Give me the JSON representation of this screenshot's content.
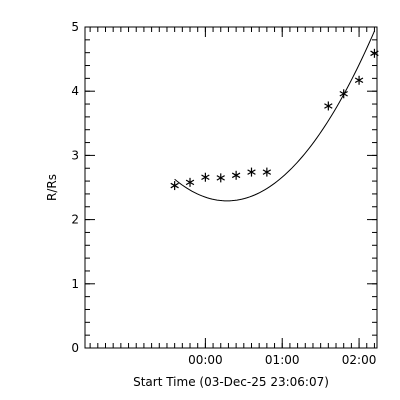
{
  "chart_data": {
    "type": "scatter",
    "xlabel": "Start Time (03-Dec-25 23:06:07)",
    "ylabel": "R/Rs",
    "x_unit": "minutes after start time",
    "xlim": [
      -40,
      188
    ],
    "ylim": [
      0,
      5
    ],
    "x_ticks": [
      {
        "value": 54,
        "label": "00:00"
      },
      {
        "value": 114,
        "label": "01:00"
      },
      {
        "value": 174,
        "label": "02:00"
      }
    ],
    "y_ticks": [
      {
        "value": 0,
        "label": "0"
      },
      {
        "value": 1,
        "label": "1"
      },
      {
        "value": 2,
        "label": "2"
      },
      {
        "value": 3,
        "label": "3"
      },
      {
        "value": 4,
        "label": "4"
      },
      {
        "value": 5,
        "label": "5"
      }
    ],
    "x_minor_step": 6,
    "y_minor_step": 0.2,
    "grid": false,
    "series": [
      {
        "marker": "asterisk",
        "color": "#000000",
        "points": [
          {
            "x": 30,
            "y": 2.53
          },
          {
            "x": 42,
            "y": 2.58
          },
          {
            "x": 54,
            "y": 2.66
          },
          {
            "x": 66,
            "y": 2.65
          },
          {
            "x": 78,
            "y": 2.69
          },
          {
            "x": 90,
            "y": 2.74
          },
          {
            "x": 102,
            "y": 2.74
          },
          {
            "x": 150,
            "y": 3.77
          },
          {
            "x": 162,
            "y": 3.96
          },
          {
            "x": 174,
            "y": 4.17
          },
          {
            "x": 186,
            "y": 4.59
          }
        ]
      }
    ],
    "fit": {
      "type": "quadratic",
      "color": "#000000",
      "x_range": [
        30,
        186
      ],
      "coefficients": [
        3.3,
        -0.0284,
        0.0002
      ]
    }
  }
}
